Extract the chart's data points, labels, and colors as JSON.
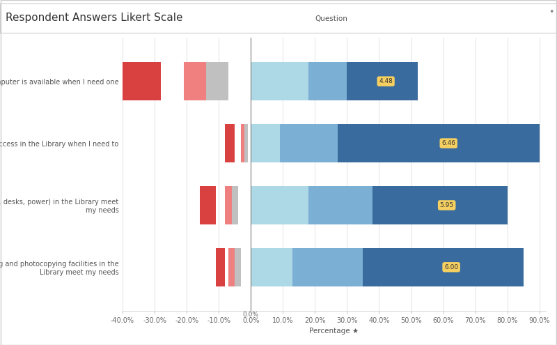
{
  "title": "Respondent Answers Likert Scale",
  "xlabel": "Percentage ★",
  "col_label": "Question",
  "questions": [
    "A computer is available when I need one",
    "I can get wireless access in the Library when I need to",
    "Laptop facilities (e.g. desks, power) in the Library meet\nmy needs",
    "Printing, scanning and photocopying facilities in the\nLibrary meet my needs"
  ],
  "means": [
    4.48,
    6.46,
    5.95,
    6.0
  ],
  "segments": [
    [
      -14.0,
      -7.0,
      -7.0,
      18.0,
      12.0,
      22.0
    ],
    [
      -3.0,
      -1.0,
      -1.0,
      9.0,
      18.0,
      63.0
    ],
    [
      -5.0,
      -2.0,
      -4.0,
      18.0,
      20.0,
      42.0
    ],
    [
      -3.0,
      -2.0,
      -3.0,
      13.0,
      22.0,
      50.0
    ]
  ],
  "colors": [
    "#d94040",
    "#f08080",
    "#c0c0c0",
    "#add8e6",
    "#7bafd4",
    "#3a6b9e"
  ],
  "xlim": [
    -40,
    92
  ],
  "xticks": [
    -40,
    -30,
    -20,
    -10,
    0,
    10,
    20,
    30,
    40,
    50,
    60,
    70,
    80,
    90
  ],
  "xtick_labels": [
    "-40.0%",
    "-30.0%",
    "-20.0%",
    "-10.0%",
    "0.0%",
    "10.0%",
    "20.0%",
    "30.0%",
    "40.0%",
    "50.0%",
    "60.0%",
    "70.0%",
    "80.0%",
    "90.0%"
  ],
  "background_color": "#ffffff",
  "plot_bg_color": "#f8f8f8",
  "grid_color": "#dddddd",
  "bar_height": 0.62,
  "mean_badge_color": "#f5d060",
  "mean_text_color": "#333333",
  "zero_line_color": "#888888",
  "title_fontsize": 11,
  "label_fontsize": 7.0,
  "tick_fontsize": 7.0,
  "mean_fontsize": 6.5,
  "header_bg": "#f0f0f0",
  "border_color": "#cccccc"
}
